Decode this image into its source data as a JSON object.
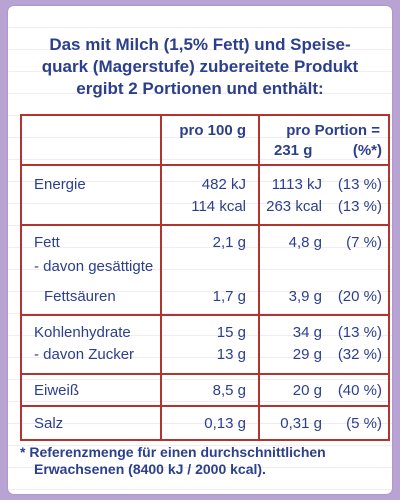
{
  "header": {
    "line1": "Das mit Milch (1,5% Fett) und Speise-",
    "line2": "quark (Magerstufe) zubereitete Produkt",
    "line3": "ergibt 2 Portionen und enthält:"
  },
  "columns": {
    "per100": "pro 100 g",
    "perPortionA": "pro Portion =",
    "perPortionB": "231 g",
    "percentLabel": "(%*)"
  },
  "rows": {
    "energie": {
      "label": "Energie",
      "kj100": "482 kJ",
      "kcal100": "114 kcal",
      "kjP": "1113 kJ",
      "kcalP": "263 kcal",
      "kjPct": "(13 %)",
      "kcalPct": "(13 %)"
    },
    "fett": {
      "label": "Fett",
      "sub1": "- davon gesättigte",
      "sub2": "Fettsäuren",
      "v100": "2,1 g",
      "vP": "4,8 g",
      "pct": "(7 %)",
      "sub100": "1,7 g",
      "subP": "3,9 g",
      "subPct": "(20 %)"
    },
    "kohlenhydrate": {
      "label": "Kohlenhydrate",
      "sub": "- davon Zucker",
      "v100": "15 g",
      "vP": "34 g",
      "pct": "(13 %)",
      "sub100": "13 g",
      "subP": "29 g",
      "subPct": "(32 %)"
    },
    "eiweiss": {
      "label": "Eiweiß",
      "v100": "8,5 g",
      "vP": "20 g",
      "pct": "(40 %)"
    },
    "salz": {
      "label": "Salz",
      "v100": "0,13 g",
      "vP": "0,31 g",
      "pct": "(5 %)"
    }
  },
  "footer": {
    "line1": "* Referenzmenge für einen durchschnittlichen",
    "line2": "Erwachsenen (8400 kJ / 2000 kcal)."
  }
}
